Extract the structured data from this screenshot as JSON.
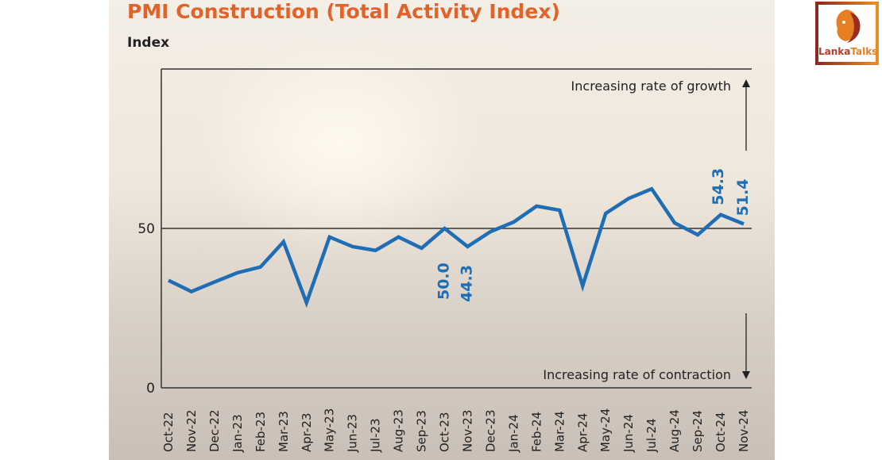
{
  "chart_data": {
    "type": "line",
    "title": "PMI Construction (Total Activity Index)",
    "ylabel": "Index",
    "xlabel": "",
    "ylim": [
      0,
      100
    ],
    "yticks": [
      "0",
      "50"
    ],
    "reference_line": 50,
    "categories": [
      "Oct-22",
      "Nov-22",
      "Dec-22",
      "Jan-23",
      "Feb-23",
      "Mar-23",
      "Apr-23",
      "May-23",
      "Jun-23",
      "Jul-23",
      "Aug-23",
      "Sep-23",
      "Oct-23",
      "Nov-23",
      "Dec-23",
      "Jan-24",
      "Feb-24",
      "Mar-24",
      "Apr-24",
      "May-24",
      "Jun-24",
      "Jul-24",
      "Aug-24",
      "Sep-24",
      "Oct-24",
      "Nov-24"
    ],
    "values": [
      33.7,
      30.2,
      33.2,
      36.1,
      37.9,
      45.8,
      26.7,
      47.3,
      44.3,
      43.1,
      47.3,
      43.8,
      50.0,
      44.3,
      49.0,
      52.0,
      57.0,
      55.7,
      32.0,
      54.7,
      59.4,
      62.4,
      51.7,
      48.0,
      54.3,
      51.4
    ],
    "data_labels": [
      {
        "category": "Oct-23",
        "text": "50.0"
      },
      {
        "category": "Nov-23",
        "text": "44.3"
      },
      {
        "category": "Oct-24",
        "text": "54.3"
      },
      {
        "category": "Nov-24",
        "text": "51.4"
      }
    ],
    "annotations": {
      "growth": "Increasing rate of growth",
      "contraction": "Increasing rate of contraction"
    },
    "line_color": "#1f6db5",
    "grid": false
  },
  "logo": {
    "part1": "Lanka",
    "part2": "Talks"
  },
  "colors": {
    "title": "#e2632a",
    "line": "#1f6db5"
  }
}
